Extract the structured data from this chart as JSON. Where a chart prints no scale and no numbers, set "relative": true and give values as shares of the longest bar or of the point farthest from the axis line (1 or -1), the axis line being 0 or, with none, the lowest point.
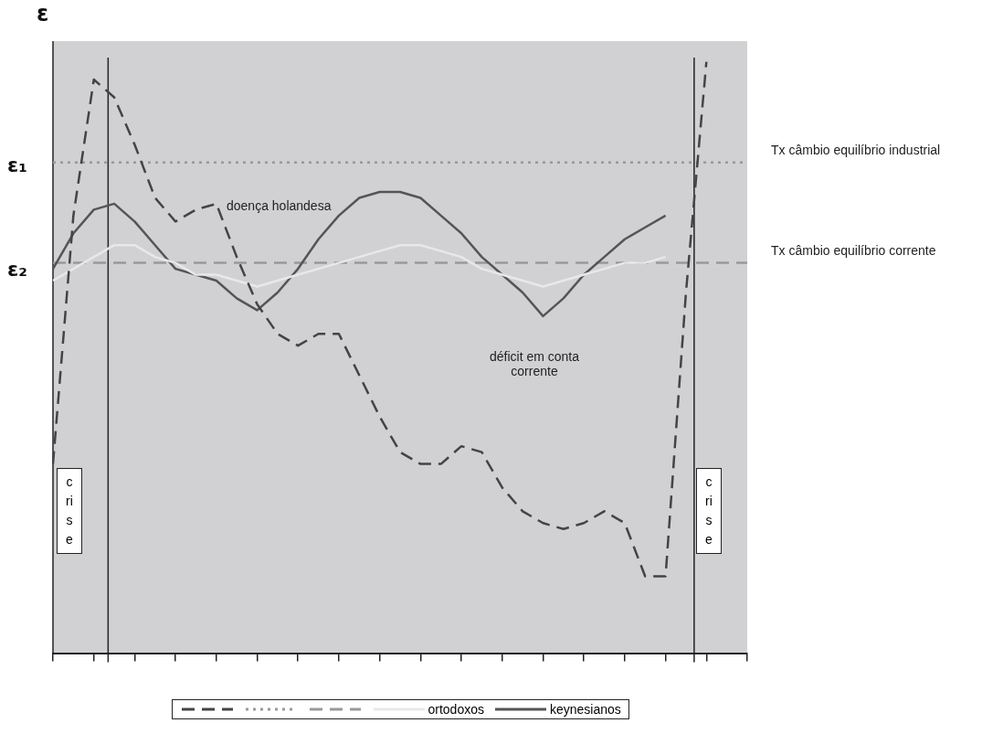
{
  "chart_data": {
    "type": "line",
    "relative": true,
    "ylabel": "ε",
    "legend": "bottom",
    "grid": false,
    "categories": [
      null,
      null,
      null,
      null,
      null,
      null,
      null,
      null,
      null,
      null,
      null,
      null,
      null,
      null,
      null,
      null,
      null,
      null,
      null,
      null,
      null,
      null,
      null,
      null,
      null,
      null,
      null,
      null,
      null,
      null,
      null,
      null,
      null,
      null,
      null
    ],
    "series": [
      {
        "color": "#444444",
        "line_style": "dashed",
        "values": [
          0.32,
          0.74,
          0.97,
          0.94,
          0.86,
          0.77,
          0.73,
          0.75,
          0.76,
          0.67,
          0.59,
          0.54,
          0.52,
          0.54,
          0.54,
          0.47,
          0.4,
          0.34,
          0.32,
          0.32,
          0.35,
          0.34,
          0.28,
          0.24,
          0.22,
          0.21,
          0.22,
          0.24,
          0.22,
          0.13,
          0.13,
          0.61,
          1,
          null,
          null
        ]
      },
      {
        "name": "ortodoxos",
        "color": "#e8e8e8",
        "line_style": "solid",
        "values": [
          0.63,
          0.65,
          0.67,
          0.69,
          0.69,
          0.67,
          0.66,
          0.64,
          0.64,
          0.63,
          0.62,
          0.63,
          0.64,
          0.65,
          0.66,
          0.67,
          0.68,
          0.69,
          0.69,
          0.68,
          0.67,
          0.65,
          0.64,
          0.63,
          0.62,
          0.63,
          0.64,
          0.65,
          0.66,
          0.66,
          0.67,
          null,
          null,
          null,
          null
        ]
      },
      {
        "name": "keynesianos",
        "color": "#555555",
        "line_style": "solid",
        "values": [
          0.65,
          0.71,
          0.75,
          0.76,
          0.73,
          0.69,
          0.65,
          0.64,
          0.63,
          0.6,
          0.58,
          0.61,
          0.65,
          0.7,
          0.74,
          0.77,
          0.78,
          0.78,
          0.77,
          0.74,
          0.71,
          0.67,
          0.64,
          0.61,
          0.57,
          0.6,
          0.64,
          0.67,
          0.7,
          0.72,
          0.74,
          null,
          null,
          null,
          null
        ]
      }
    ],
    "ref_lines": [
      {
        "axis": "y",
        "value": 0.83,
        "label": "Tx câmbio equilíbrio industrial",
        "color": "#999999",
        "line_style": "dotted"
      },
      {
        "axis": "y",
        "value": 0.66,
        "label": "Tx câmbio equilíbrio corrente",
        "color": "#999999",
        "line_style": "dashed"
      }
    ],
    "annotations": [
      "ε₁",
      "ε₂",
      "doença holandesa",
      "déficit em conta corrente",
      "crise",
      "crise"
    ]
  }
}
